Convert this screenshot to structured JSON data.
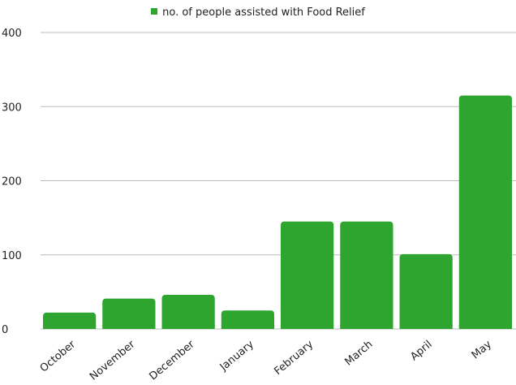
{
  "chart_data": {
    "type": "bar",
    "categories": [
      "October",
      "November",
      "December",
      "January",
      "February",
      "March",
      "April",
      "May"
    ],
    "series": [
      {
        "name": "no. of people assisted with Food Relief",
        "values": [
          22,
          41,
          46,
          25,
          145,
          145,
          101,
          315
        ],
        "color": "#2ea52e"
      }
    ],
    "ylim": [
      0,
      400
    ],
    "yticks": [
      0,
      100,
      200,
      300,
      400
    ],
    "grid": true,
    "legend_position": "top-center"
  }
}
